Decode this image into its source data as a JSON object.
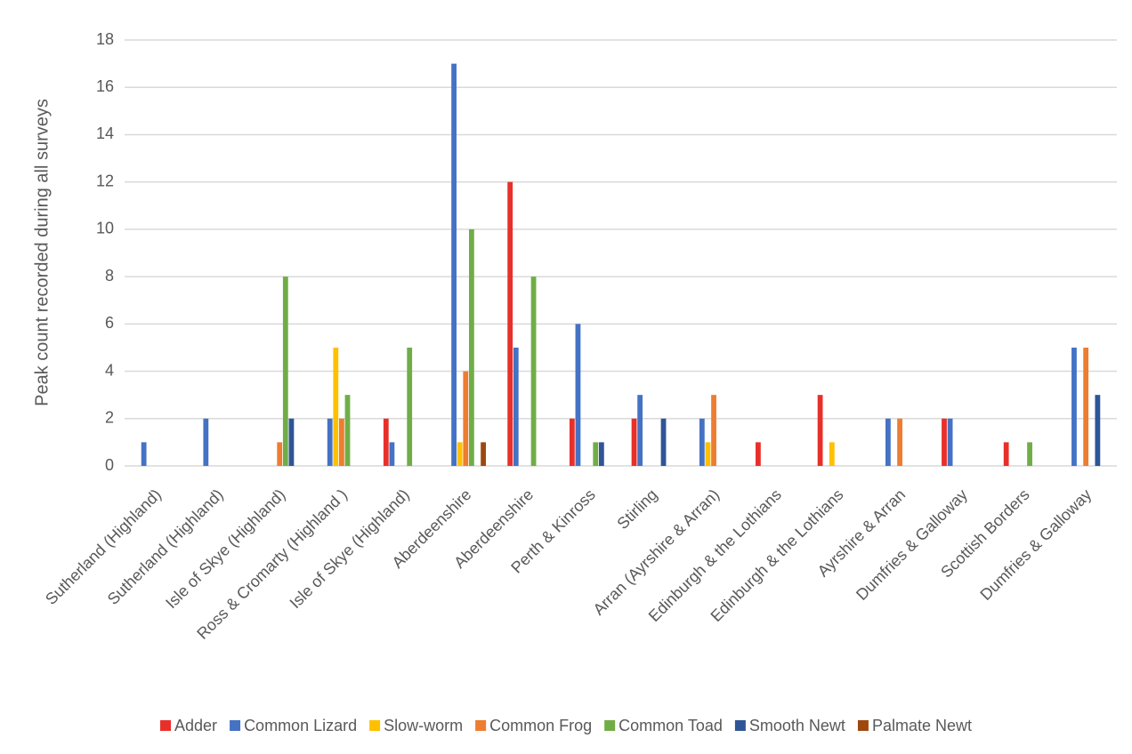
{
  "chart_data": {
    "type": "bar",
    "y_label": "Peak count  recorded during all surveys",
    "categories": [
      "Sutherland (Highland)",
      "Sutherland (Highland)",
      "Isle of Skye (Highland)",
      "Ross & Cromarty (Highland )",
      "Isle of Skye (Highland)",
      "Aberdeenshire",
      "Aberdeenshire",
      "Perth & Kinross",
      "Stirling",
      "Arran (Ayrshire & Arran)",
      "Edinburgh & the Lothians",
      "Edinburgh & the Lothians",
      "Ayrshire & Arran",
      "Dumfries & Galloway",
      "Scottish Borders",
      "Dumfries & Galloway"
    ],
    "series": [
      {
        "name": "Adder",
        "color": "#e8302a",
        "values": [
          0,
          0,
          0,
          0,
          2,
          0,
          12,
          2,
          2,
          0,
          1,
          3,
          0,
          2,
          1,
          0
        ]
      },
      {
        "name": "Common Lizard",
        "color": "#4472c4",
        "values": [
          1,
          2,
          0,
          2,
          1,
          17,
          5,
          6,
          3,
          2,
          0,
          0,
          2,
          2,
          0,
          5
        ]
      },
      {
        "name": "Slow-worm",
        "color": "#ffc000",
        "values": [
          0,
          0,
          0,
          5,
          0,
          1,
          0,
          0,
          0,
          1,
          0,
          1,
          0,
          0,
          0,
          0
        ]
      },
      {
        "name": "Common Frog",
        "color": "#ed7d31",
        "values": [
          0,
          0,
          1,
          2,
          0,
          4,
          0,
          0,
          0,
          3,
          0,
          0,
          2,
          0,
          0,
          5
        ]
      },
      {
        "name": "Common Toad",
        "color": "#70ad47",
        "values": [
          0,
          0,
          8,
          3,
          5,
          10,
          8,
          1,
          0,
          0,
          0,
          0,
          0,
          0,
          1,
          0
        ]
      },
      {
        "name": "Smooth Newt",
        "color": "#2f5597",
        "values": [
          0,
          0,
          2,
          0,
          0,
          0,
          0,
          1,
          2,
          0,
          0,
          0,
          0,
          0,
          0,
          3
        ]
      },
      {
        "name": "Palmate Newt",
        "color": "#9e480e",
        "values": [
          0,
          0,
          0,
          0,
          0,
          1,
          0,
          0,
          0,
          0,
          0,
          0,
          0,
          0,
          0,
          0
        ]
      }
    ],
    "ylim": [
      0,
      18
    ],
    "yticks": [
      0,
      2,
      4,
      6,
      8,
      10,
      12,
      14,
      16,
      18
    ],
    "grid": true
  }
}
